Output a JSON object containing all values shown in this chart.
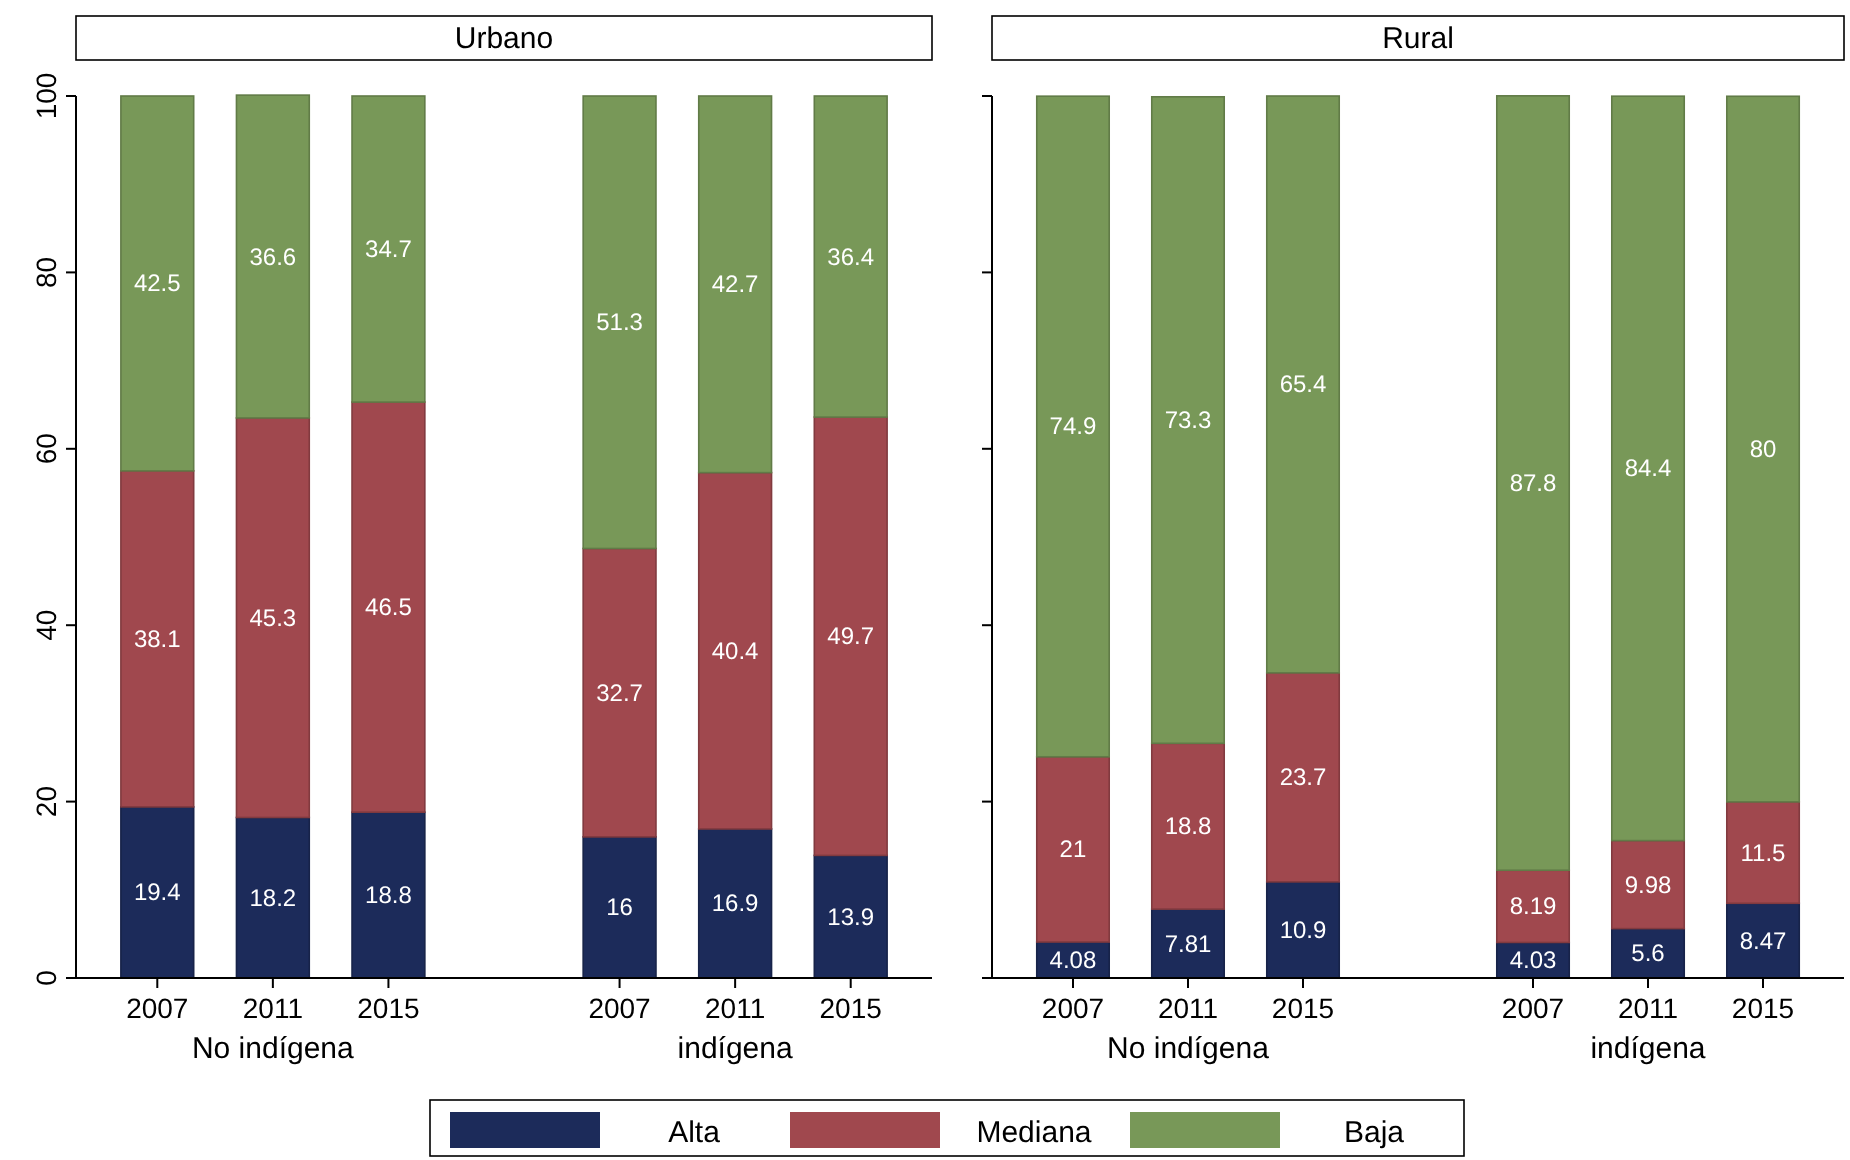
{
  "chart_data": [
    {
      "type": "bar",
      "title": "Urbano",
      "stacked": true,
      "data_labels": true,
      "legend": "bottom",
      "categories": [
        "2007",
        "2011",
        "2015",
        null,
        "2007",
        "2011",
        "2015"
      ],
      "ylim": [
        0,
        100
      ],
      "yticks": [
        0,
        20,
        40,
        60,
        80,
        100
      ],
      "annotations": [
        "No indígena",
        "indígena"
      ],
      "series": [
        {
          "name": "Alta",
          "color": "#1c2b5a",
          "values": [
            19.4,
            18.2,
            18.8,
            null,
            16,
            16.9,
            13.9
          ]
        },
        {
          "name": "Mediana",
          "color": "#a0484e",
          "values": [
            38.1,
            45.3,
            46.5,
            null,
            32.7,
            40.4,
            49.7
          ]
        },
        {
          "name": "Baja",
          "color": "#789858",
          "values": [
            42.5,
            36.6,
            34.7,
            null,
            51.3,
            42.7,
            36.4
          ]
        }
      ]
    },
    {
      "type": "bar",
      "title": "Rural",
      "stacked": true,
      "data_labels": true,
      "tick_labels": "x",
      "categories": [
        "2007",
        "2011",
        "2015",
        null,
        "2007",
        "2011",
        "2015"
      ],
      "ylim": [
        0,
        100
      ],
      "yticks": [
        0,
        20,
        40,
        60,
        80,
        100
      ],
      "annotations": [
        "No indígena",
        "indígena"
      ],
      "series": [
        {
          "color": "#1c2b5a",
          "values": [
            4.08,
            7.81,
            10.9,
            null,
            4.03,
            5.6,
            8.47
          ]
        },
        {
          "color": "#a0484e",
          "values": [
            21,
            18.8,
            23.7,
            null,
            8.19,
            9.98,
            11.5
          ]
        },
        {
          "color": "#789858",
          "values": [
            74.9,
            73.3,
            65.4,
            null,
            87.8,
            84.4,
            80
          ]
        }
      ]
    }
  ]
}
